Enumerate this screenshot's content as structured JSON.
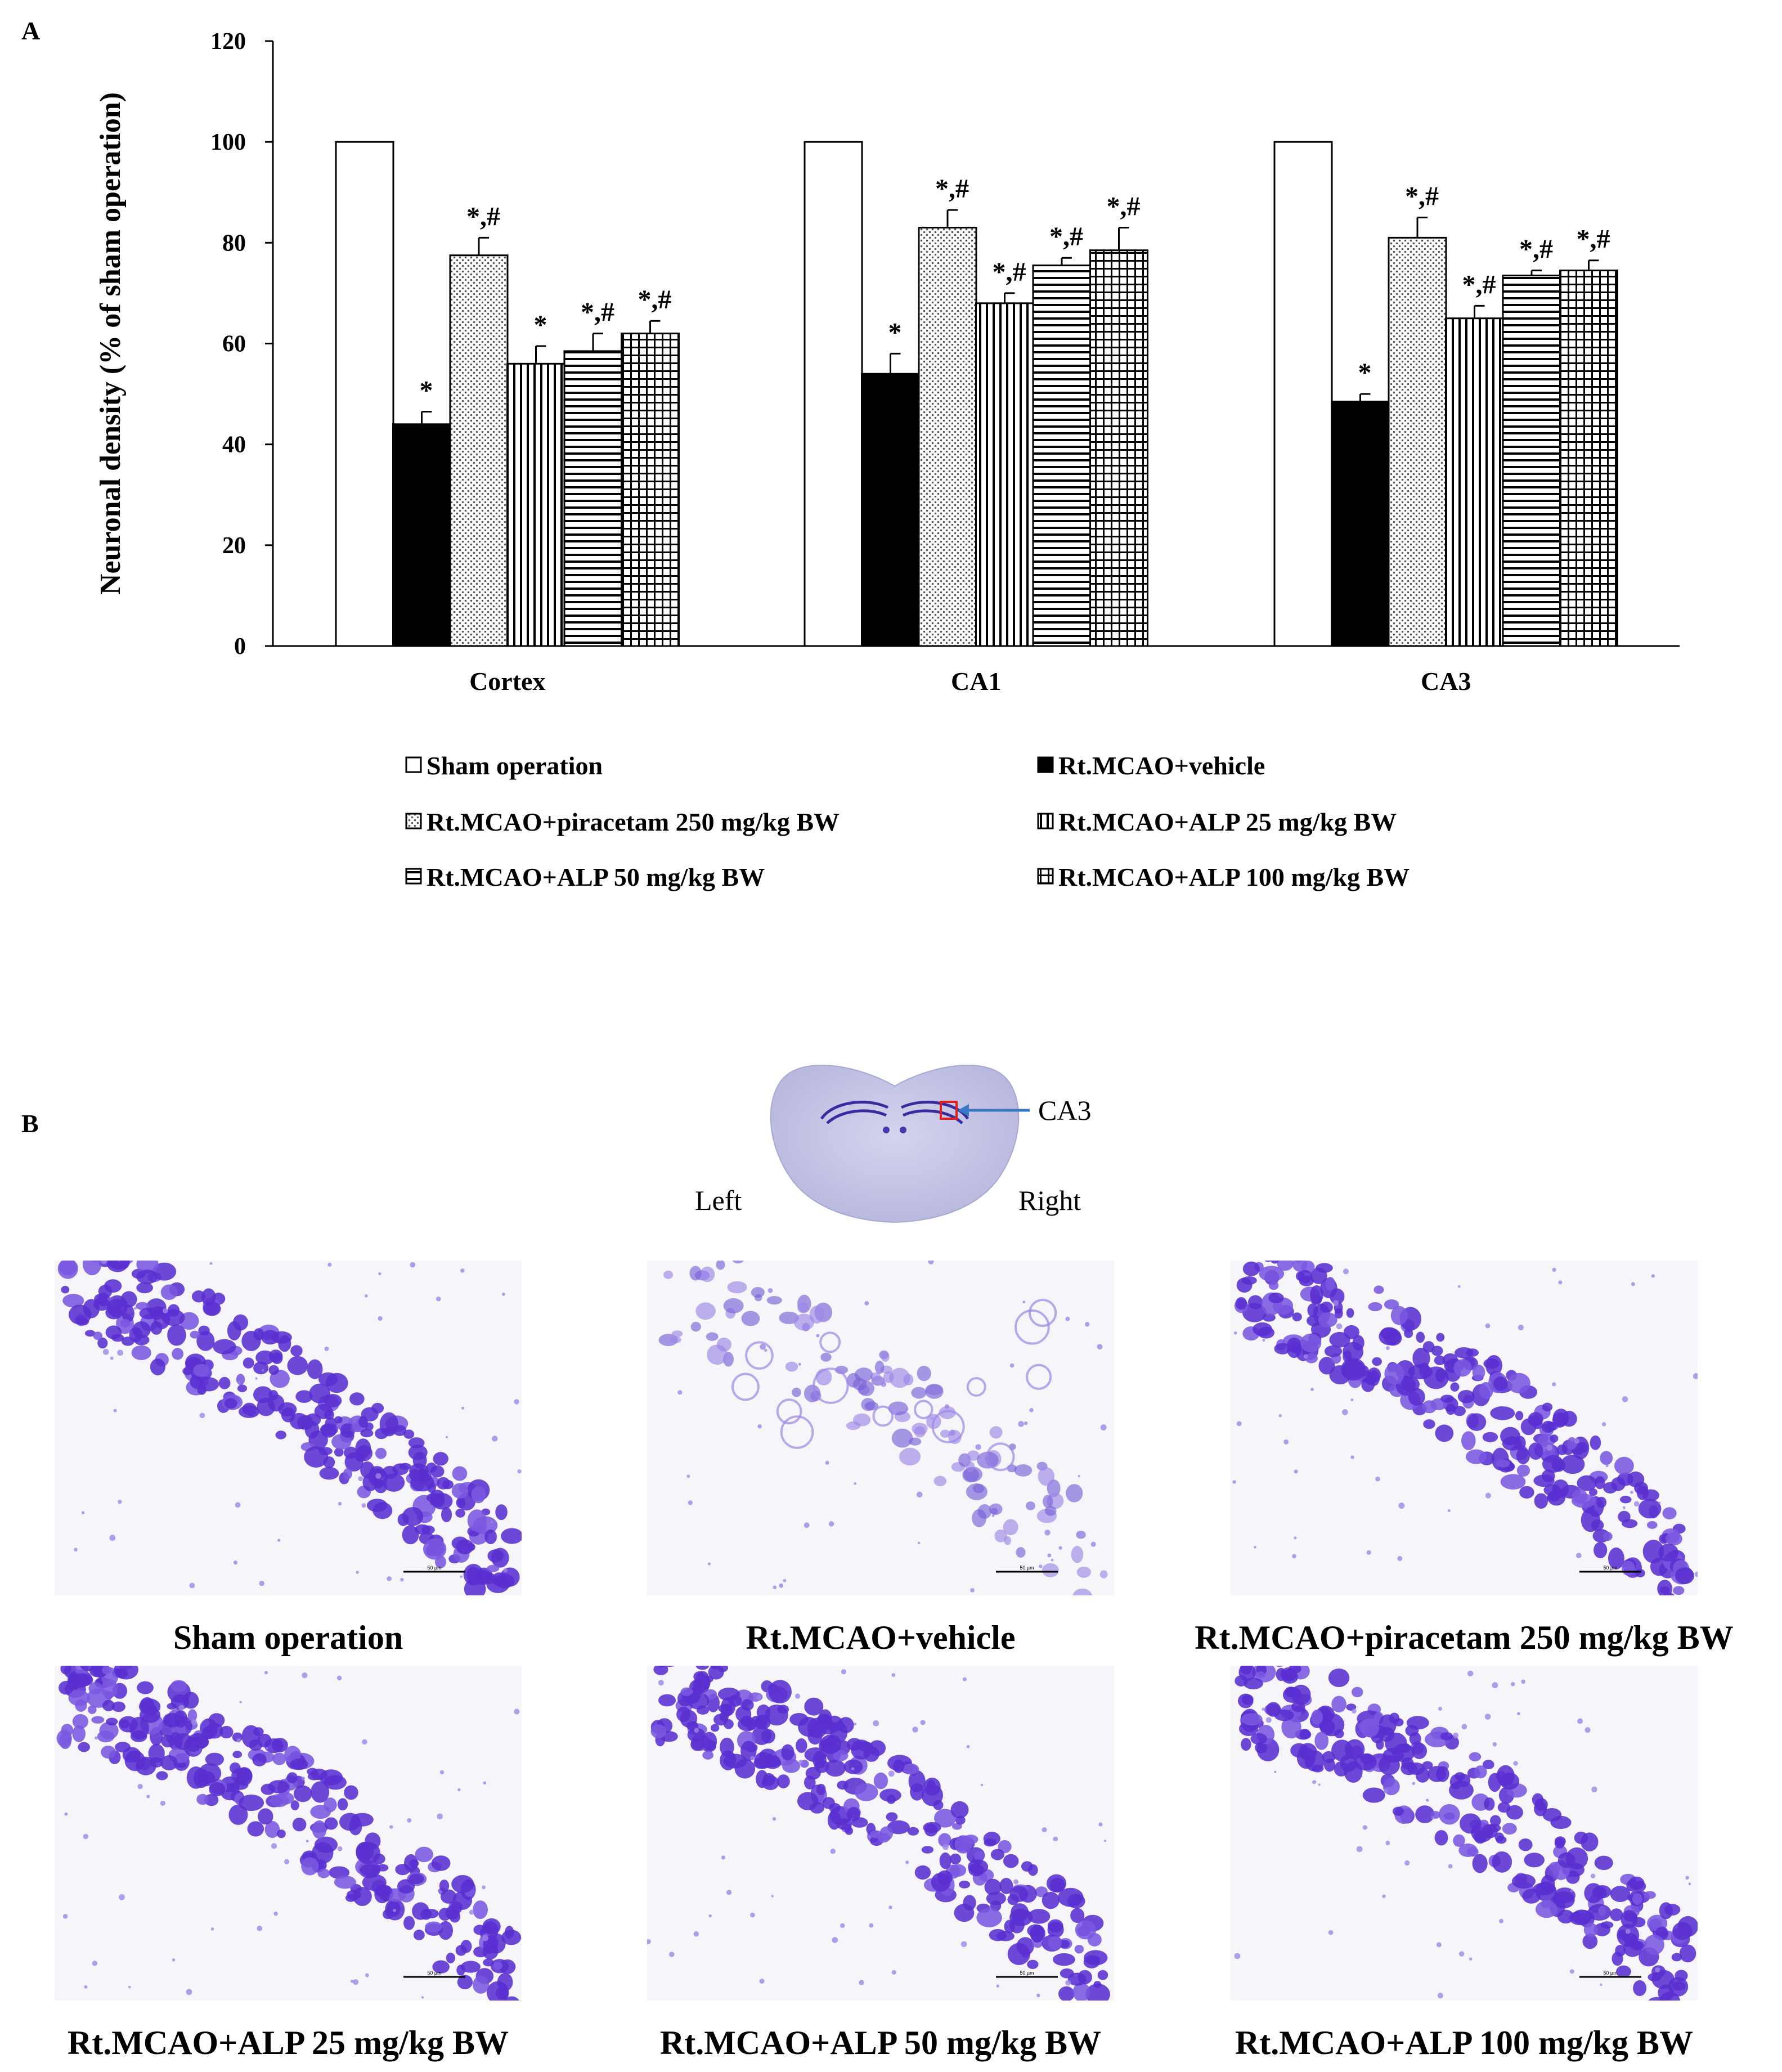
{
  "panel_a": {
    "letter": "A"
  },
  "panel_b": {
    "letter": "B"
  },
  "chart_data": {
    "type": "bar",
    "title": "",
    "xlabel": "",
    "ylabel": "Neuronal density (% of sham operation)",
    "ylim": [
      0,
      120
    ],
    "yticks": [
      0,
      20,
      40,
      60,
      80,
      100,
      120
    ],
    "categories": [
      "Cortex",
      "CA1",
      "CA3"
    ],
    "series": [
      {
        "name": "Sham operation",
        "pattern": "white",
        "values": [
          100,
          100,
          100
        ],
        "errors": [
          0,
          0,
          0
        ],
        "sig": [
          "",
          "",
          ""
        ]
      },
      {
        "name": "Rt.MCAO+vehicle",
        "pattern": "black",
        "values": [
          44,
          54,
          48.5
        ],
        "errors": [
          2.5,
          4,
          1.5
        ],
        "sig": [
          "*",
          "*",
          "*"
        ]
      },
      {
        "name": "Rt.MCAO+piracetam 250 mg/kg BW",
        "pattern": "dots",
        "values": [
          77.5,
          83,
          81
        ],
        "errors": [
          3.5,
          3.5,
          4
        ],
        "sig": [
          "*,#",
          "*,#",
          "*,#"
        ]
      },
      {
        "name": "Rt.MCAO+ALP 25 mg/kg BW",
        "pattern": "vlines",
        "values": [
          56,
          68,
          65
        ],
        "errors": [
          3.5,
          2,
          2.5
        ],
        "sig": [
          "*",
          "*,#",
          "*,#"
        ]
      },
      {
        "name": "Rt.MCAO+ALP 50 mg/kg BW",
        "pattern": "hlines",
        "values": [
          58.5,
          75.5,
          73.5
        ],
        "errors": [
          3.5,
          1.5,
          1
        ],
        "sig": [
          "*,#",
          "*,#",
          "*,#"
        ]
      },
      {
        "name": "Rt.MCAO+ALP 100 mg/kg BW",
        "pattern": "grid",
        "values": [
          62,
          78.5,
          74.5
        ],
        "errors": [
          2.5,
          4.5,
          2
        ],
        "sig": [
          "*,#",
          "*,#",
          "*,#"
        ]
      }
    ],
    "legend_placement": "bottom"
  },
  "overview": {
    "region_label": "CA3",
    "left_label": "Left",
    "right_label": "Right"
  },
  "micrographs": [
    {
      "label": "Sham operation",
      "density": "dense",
      "scale_text": "50 µm"
    },
    {
      "label": "Rt.MCAO+vehicle",
      "density": "sparse",
      "scale_text": "50 µm"
    },
    {
      "label": "Rt.MCAO+piracetam 250 mg/kg BW",
      "density": "dense",
      "scale_text": "50 µm"
    },
    {
      "label": "Rt.MCAO+ALP 25 mg/kg BW",
      "density": "dense",
      "scale_text": "50 µm"
    },
    {
      "label": "Rt.MCAO+ALP 50 mg/kg BW",
      "density": "dense",
      "scale_text": "50 µm"
    },
    {
      "label": "Rt.MCAO+ALP 100 mg/kg BW",
      "density": "dense",
      "scale_text": "50 µm"
    }
  ],
  "colors": {
    "stain": "#5a2fd0",
    "stain_light": "#9d86e6",
    "tissue_bg": "#f6f6fa",
    "overview_tissue": "#c4c4e4",
    "arrow": "#3a78c8",
    "box": "#e02020"
  }
}
